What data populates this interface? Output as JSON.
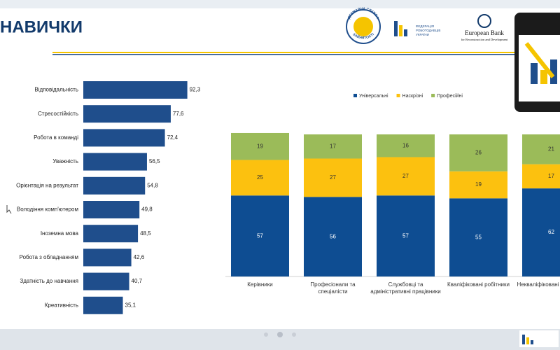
{
  "header": {
    "title": "НАВИЧКИ",
    "logos": [
      "ДЕРЖАВНА СЛУЖБА",
      "ЗАЙНЯТОСТІ",
      "ФЕДЕРАЦІЯ",
      "РОБОТОДАВЦІВ",
      "УКРАЇНИ",
      "European Bank",
      "for Reconstruction and Development"
    ]
  },
  "chart_data": [
    {
      "type": "hbar",
      "categories": [
        "Відповідальність",
        "Стресостійкість",
        "Робота в команді",
        "Уважність",
        "Орієнтація на результат",
        "Володіння комп'ютером",
        "Іноземна мова",
        "Робота з обладнанням",
        "Здатність до навчання",
        "Креативність"
      ],
      "values": [
        92.3,
        77.6,
        72.4,
        56.5,
        54.8,
        49.8,
        48.5,
        42.6,
        40.7,
        35.1
      ],
      "value_labels": [
        "92,3",
        "77,6",
        "72,4",
        "56,5",
        "54,8",
        "49,8",
        "48,5",
        "42,6",
        "40,7",
        "35,1"
      ],
      "color": "#1f4e8c",
      "xlim": [
        0,
        100
      ]
    },
    {
      "type": "stacked_bar",
      "categories": [
        "Керівники",
        "Професіонали та спеціалісти",
        "Службовці та адміністративні працівники",
        "Кваліфіковані робітники",
        "Некваліфіковані робітники"
      ],
      "series": [
        {
          "name": "Універсальні",
          "color": "#0e4d92",
          "values": [
            57,
            56,
            57,
            55,
            62
          ]
        },
        {
          "name": "Наскрізні",
          "color": "#fcc10f",
          "values": [
            25,
            27,
            27,
            19,
            17
          ]
        },
        {
          "name": "Професійні",
          "color": "#9bbb59",
          "values": [
            19,
            17,
            16,
            26,
            21
          ]
        }
      ],
      "ylim": [
        0,
        100
      ],
      "legend": "top"
    }
  ]
}
